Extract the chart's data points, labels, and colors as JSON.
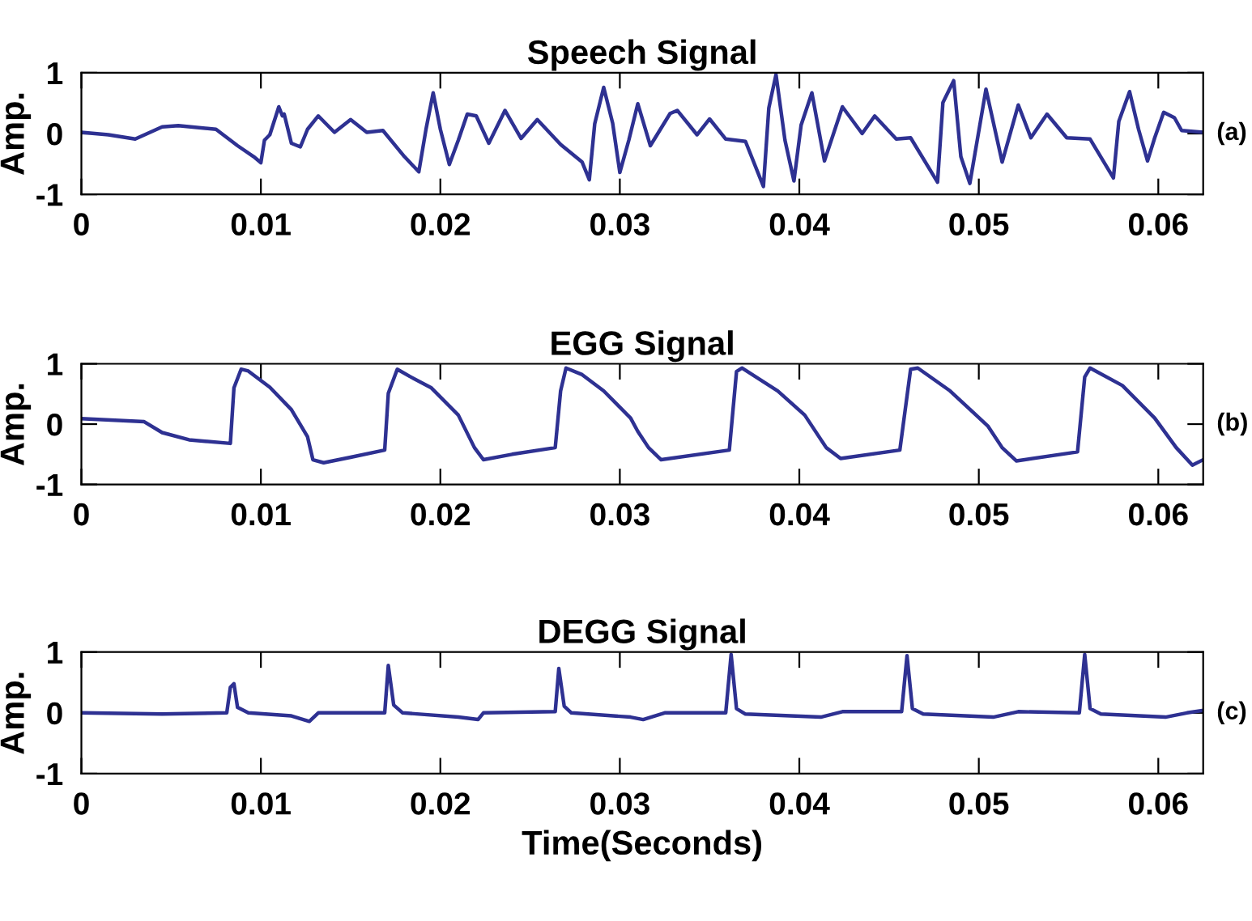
{
  "chart_data": [
    {
      "type": "line",
      "title": "Speech Signal",
      "ylabel": "Amp.",
      "annotations": [
        "(a)"
      ],
      "xlim": [
        0,
        0.0625
      ],
      "ylim": [
        -1,
        1
      ],
      "xticks": [
        0,
        0.01,
        0.02,
        0.03,
        0.04,
        0.05,
        0.06
      ],
      "yticks": [
        -1,
        0,
        1
      ],
      "grid": false,
      "marker": "none",
      "line_style": "solid",
      "series": [
        {
          "color": "#2e3192",
          "x": [
            0,
            0.0015,
            0.003,
            0.0045,
            0.0054,
            0.0075,
            0.0087,
            0.0096,
            0.01,
            0.0102,
            0.0105,
            0.011,
            0.0112,
            0.0113,
            0.0117,
            0.0122,
            0.0126,
            0.0132,
            0.0136,
            0.0141,
            0.015,
            0.0159,
            0.0168,
            0.018,
            0.0188,
            0.0192,
            0.0196,
            0.02,
            0.0205,
            0.021,
            0.0215,
            0.022,
            0.0227,
            0.0236,
            0.0245,
            0.0254,
            0.0267,
            0.0279,
            0.0283,
            0.0286,
            0.0291,
            0.0296,
            0.03,
            0.0305,
            0.031,
            0.0317,
            0.0328,
            0.0332,
            0.0343,
            0.035,
            0.0359,
            0.037,
            0.038,
            0.0383,
            0.0387,
            0.0392,
            0.0397,
            0.0401,
            0.0407,
            0.0414,
            0.0424,
            0.0435,
            0.0442,
            0.0454,
            0.0462,
            0.0477,
            0.048,
            0.0486,
            0.049,
            0.0495,
            0.0504,
            0.0513,
            0.0522,
            0.0529,
            0.0538,
            0.0549,
            0.0562,
            0.0575,
            0.0578,
            0.0584,
            0.0589,
            0.0594,
            0.0598,
            0.0603,
            0.0609,
            0.0613,
            0.0625
          ],
          "values": [
            0.02,
            -0.02,
            -0.09,
            0.11,
            0.13,
            0.07,
            -0.2,
            -0.38,
            -0.48,
            -0.11,
            -0.02,
            0.44,
            0.29,
            0.32,
            -0.16,
            -0.22,
            0.07,
            0.29,
            0.17,
            0.02,
            0.23,
            0.02,
            0.05,
            -0.38,
            -0.63,
            0.07,
            0.67,
            0.07,
            -0.51,
            -0.11,
            0.32,
            0.29,
            -0.16,
            0.38,
            -0.08,
            0.23,
            -0.18,
            -0.47,
            -0.76,
            0.16,
            0.76,
            0.17,
            -0.64,
            -0.11,
            0.49,
            -0.2,
            0.33,
            0.38,
            -0.02,
            0.24,
            -0.09,
            -0.13,
            -0.87,
            0.42,
            0.97,
            -0.11,
            -0.78,
            0.14,
            0.67,
            -0.45,
            0.44,
            0,
            0.29,
            -0.09,
            -0.07,
            -0.8,
            0.51,
            0.87,
            -0.38,
            -0.82,
            0.73,
            -0.47,
            0.47,
            -0.07,
            0.32,
            -0.07,
            -0.09,
            -0.73,
            0.2,
            0.69,
            0.07,
            -0.45,
            -0.07,
            0.35,
            0.26,
            0.05,
            0.02
          ]
        }
      ]
    },
    {
      "type": "line",
      "title": "EGG Signal",
      "ylabel": "Amp.",
      "annotations": [
        "(b)"
      ],
      "xlim": [
        0,
        0.0625
      ],
      "ylim": [
        -1,
        1
      ],
      "xticks": [
        0,
        0.01,
        0.02,
        0.03,
        0.04,
        0.05,
        0.06
      ],
      "yticks": [
        -1,
        0,
        1
      ],
      "grid": false,
      "marker": "none",
      "line_style": "solid",
      "series": [
        {
          "color": "#2e3192",
          "x": [
            0,
            0.0035,
            0.0045,
            0.006,
            0.0083,
            0.0085,
            0.0089,
            0.0093,
            0.0105,
            0.0117,
            0.0126,
            0.0129,
            0.0135,
            0.015,
            0.0169,
            0.0171,
            0.0176,
            0.0183,
            0.0195,
            0.021,
            0.0219,
            0.0224,
            0.024,
            0.0264,
            0.0267,
            0.027,
            0.0279,
            0.0291,
            0.0306,
            0.031,
            0.0316,
            0.0323,
            0.0361,
            0.0365,
            0.0368,
            0.0388,
            0.0403,
            0.0415,
            0.0423,
            0.0456,
            0.0462,
            0.0466,
            0.0484,
            0.0505,
            0.0513,
            0.0521,
            0.0555,
            0.0559,
            0.0562,
            0.058,
            0.0598,
            0.061,
            0.0619,
            0.0625
          ],
          "values": [
            0.09,
            0.04,
            -0.14,
            -0.26,
            -0.32,
            0.6,
            0.91,
            0.88,
            0.61,
            0.24,
            -0.21,
            -0.59,
            -0.64,
            -0.55,
            -0.43,
            0.51,
            0.91,
            0.79,
            0.6,
            0.15,
            -0.39,
            -0.59,
            -0.5,
            -0.39,
            0.55,
            0.93,
            0.82,
            0.55,
            0.1,
            -0.12,
            -0.39,
            -0.59,
            -0.43,
            0.87,
            0.93,
            0.55,
            0.15,
            -0.39,
            -0.57,
            -0.43,
            0.91,
            0.93,
            0.55,
            -0.03,
            -0.39,
            -0.61,
            -0.46,
            0.78,
            0.93,
            0.64,
            0.1,
            -0.39,
            -0.68,
            -0.59
          ]
        }
      ]
    },
    {
      "type": "line",
      "title": "DEGG Signal",
      "ylabel": "Amp.",
      "xlabel": "Time(Seconds)",
      "annotations": [
        "(c)"
      ],
      "xlim": [
        0,
        0.0625
      ],
      "ylim": [
        -1,
        1
      ],
      "xticks": [
        0,
        0.01,
        0.02,
        0.03,
        0.04,
        0.05,
        0.06
      ],
      "yticks": [
        -1,
        0,
        1
      ],
      "grid": false,
      "marker": "none",
      "line_style": "solid",
      "series": [
        {
          "color": "#2e3192",
          "x": [
            0,
            0.0045,
            0.0081,
            0.0083,
            0.0085,
            0.0087,
            0.0093,
            0.0117,
            0.0127,
            0.0132,
            0.0169,
            0.0171,
            0.0174,
            0.0179,
            0.021,
            0.0221,
            0.0224,
            0.0264,
            0.0266,
            0.0269,
            0.0273,
            0.0306,
            0.0313,
            0.0325,
            0.0359,
            0.0362,
            0.0365,
            0.037,
            0.0412,
            0.0424,
            0.0457,
            0.046,
            0.0463,
            0.0469,
            0.0508,
            0.0522,
            0.0556,
            0.0559,
            0.0562,
            0.0568,
            0.0604,
            0.0616,
            0.0625
          ],
          "values": [
            0,
            -0.02,
            0,
            0.42,
            0.48,
            0.09,
            0,
            -0.05,
            -0.14,
            0,
            0,
            0.78,
            0.13,
            0,
            -0.07,
            -0.11,
            0,
            0.02,
            0.73,
            0.11,
            0,
            -0.07,
            -0.11,
            0,
            0,
            0.96,
            0.07,
            -0.02,
            -0.07,
            0.02,
            0.02,
            0.94,
            0.07,
            -0.02,
            -0.07,
            0.02,
            0,
            0.96,
            0.07,
            -0.02,
            -0.07,
            0,
            0.04
          ]
        }
      ]
    }
  ]
}
